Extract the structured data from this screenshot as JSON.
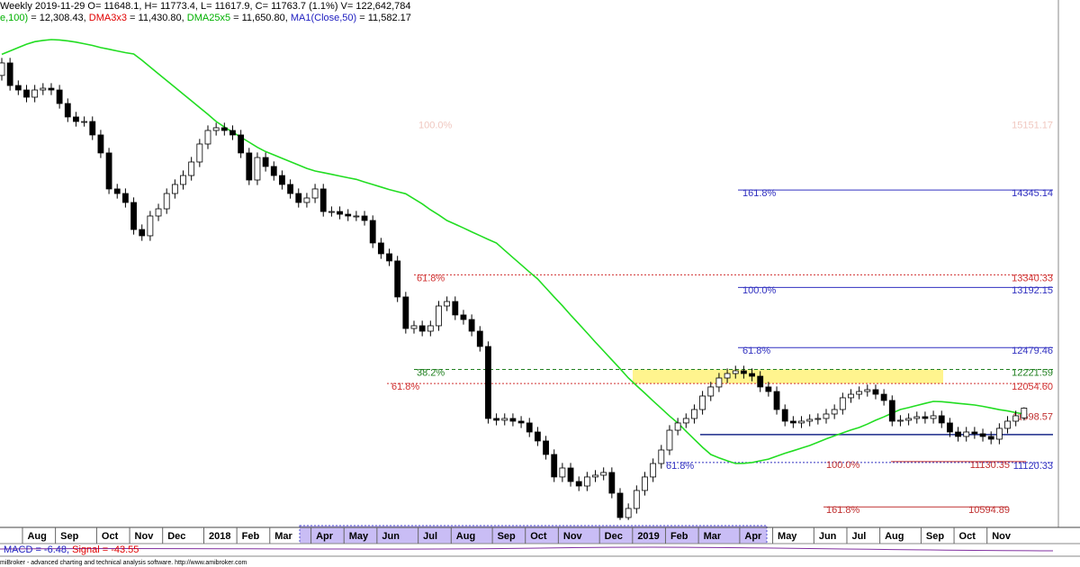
{
  "chart_data": {
    "type": "candlestick",
    "title": "Weekly 2019-11-29 O= 11648.1, H= 11773.4, L= 11617.9, C= 11763.7 (1.1%) V= 122,642,784",
    "indicators": [
      {
        "text": "e,100)",
        "color": "#00b000"
      },
      {
        "text": " = 12,308.43, ",
        "color": "#000000"
      },
      {
        "text": "DMA3x3",
        "color": "#e00000"
      },
      {
        "text": " = 11,430.80, ",
        "color": "#000000"
      },
      {
        "text": "DMA25x5",
        "color": "#00b000"
      },
      {
        "text": " = 11,650.80, ",
        "color": "#000000"
      },
      {
        "text": "MA1(Close,50)",
        "color": "#2020c0"
      },
      {
        "text": " = 11,582.17",
        "color": "#000000"
      }
    ],
    "macd": [
      {
        "text": "MACD = -6.48,",
        "color": "#2020c0"
      },
      {
        "text": " Signal = -43.55",
        "color": "#e00000"
      }
    ],
    "footer": "miBroker - advanced charting and technical analysis software. http://www.amibroker.com",
    "ylim": [
      10416,
      16593
    ],
    "categories": [
      null,
      null,
      null,
      "Aug",
      null,
      null,
      null,
      "Sep",
      null,
      null,
      null,
      null,
      "Oct",
      null,
      null,
      null,
      "Nov",
      null,
      null,
      null,
      "Dec",
      null,
      null,
      null,
      null,
      "2018",
      null,
      null,
      null,
      "Feb",
      null,
      null,
      null,
      "Mar",
      null,
      null,
      null,
      null,
      "Apr",
      null,
      null,
      null,
      "May",
      null,
      null,
      null,
      "Jun",
      null,
      null,
      null,
      null,
      "Jul",
      null,
      null,
      null,
      "Aug",
      null,
      null,
      null,
      null,
      "Sep",
      null,
      null,
      null,
      "Oct",
      null,
      null,
      null,
      "Nov",
      null,
      null,
      null,
      null,
      "Dec",
      null,
      null,
      null,
      "2019",
      null,
      null,
      null,
      "Feb",
      null,
      null,
      null,
      "Mar",
      null,
      null,
      null,
      null,
      "Apr",
      null,
      null,
      null,
      "May",
      null,
      null,
      null,
      null,
      "Jun",
      null,
      null,
      null,
      "Jul",
      null,
      null,
      null,
      "Aug",
      null,
      null,
      null,
      null,
      "Sep",
      null,
      null,
      null,
      "Oct",
      null,
      null,
      null,
      "Nov",
      null,
      null,
      null,
      null
    ],
    "open": [
      15700,
      15848,
      15581,
      15528,
      15443,
      15528,
      15549,
      15528,
      15368,
      15209,
      15155,
      15155,
      14996,
      14783,
      14357,
      14303,
      14197,
      13877,
      13803,
      14037,
      14122,
      14303,
      14410,
      14516,
      14676,
      14889,
      15049,
      15081,
      15049,
      14996,
      14783,
      14463,
      14729,
      14623,
      14516,
      14410,
      14303,
      14197,
      14250,
      14357,
      14090,
      14090,
      14058,
      14037,
      14037,
      13984,
      13718,
      13590,
      13505,
      13079,
      12706,
      12738,
      12674,
      12738,
      12972,
      13025,
      12866,
      12812,
      12674,
      12493,
      11641,
      11620,
      11641,
      11609,
      11588,
      11481,
      11375,
      11215,
      10949,
      11055,
      10895,
      10842,
      10949,
      10970,
      11002,
      10757,
      10469,
      10576,
      10789,
      10949,
      11108,
      11268,
      11502,
      11588,
      11641,
      11747,
      11907,
      12014,
      12120,
      12173,
      12205,
      12173,
      12141,
      12014,
      11960,
      11747,
      11609,
      11588,
      11609,
      11630,
      11641,
      11694,
      11747,
      11886,
      11928,
      11960,
      11982,
      11928,
      11854,
      11609,
      11620,
      11641,
      11662,
      11641,
      11673,
      11588,
      11481,
      11428,
      11481,
      11460,
      11428,
      11396,
      11524,
      11609,
      11648.1
    ],
    "high": [
      15908,
      15908,
      15641,
      15588,
      15588,
      15609,
      15609,
      15588,
      15428,
      15269,
      15215,
      15215,
      15056,
      14843,
      14417,
      14363,
      14257,
      13937,
      14097,
      14182,
      14363,
      14470,
      14576,
      14736,
      14949,
      15109,
      15141,
      15141,
      15109,
      15056,
      14843,
      14789,
      14789,
      14683,
      14576,
      14470,
      14363,
      14310,
      14417,
      14417,
      14150,
      14150,
      14118,
      14097,
      14097,
      14044,
      13778,
      13650,
      13565,
      13139,
      12798,
      12798,
      12798,
      13032,
      13085,
      13085,
      12926,
      12872,
      12734,
      12553,
      11701,
      11701,
      11701,
      11669,
      11648,
      11541,
      11435,
      11275,
      11115,
      11115,
      10955,
      11009,
      11030,
      11062,
      11062,
      10817,
      10636,
      10849,
      11009,
      11168,
      11328,
      11562,
      11648,
      11701,
      11807,
      11967,
      12074,
      12180,
      12233,
      12265,
      12265,
      12233,
      12201,
      12074,
      12020,
      11807,
      11669,
      11669,
      11690,
      11701,
      11754,
      11807,
      11946,
      11988,
      12020,
      12042,
      12042,
      11988,
      11914,
      11680,
      11701,
      11722,
      11722,
      11733,
      11733,
      11648,
      11541,
      11541,
      11541,
      11520,
      11488,
      11584,
      11669,
      11733,
      11773.4
    ],
    "low": [
      15640,
      15521,
      15468,
      15383,
      15383,
      15468,
      15468,
      15308,
      15149,
      15095,
      15095,
      14936,
      14723,
      14297,
      14243,
      14137,
      13817,
      13743,
      13743,
      13977,
      14062,
      14243,
      14350,
      14456,
      14616,
      14829,
      14989,
      14989,
      14936,
      14723,
      14403,
      14403,
      14563,
      14456,
      14350,
      14243,
      14137,
      14137,
      14190,
      14030,
      14030,
      13998,
      13977,
      13977,
      13924,
      13658,
      13530,
      13445,
      13019,
      12646,
      12646,
      12614,
      12614,
      12678,
      12912,
      12806,
      12752,
      12614,
      12433,
      11581,
      11560,
      11560,
      11549,
      11528,
      11421,
      11315,
      11155,
      10889,
      10889,
      10835,
      10782,
      10782,
      10889,
      10910,
      10697,
      10440,
      10440,
      10516,
      10729,
      10889,
      11048,
      11208,
      11442,
      11528,
      11581,
      11687,
      11847,
      11954,
      12060,
      12113,
      12113,
      12081,
      11954,
      11900,
      11687,
      11549,
      11528,
      11528,
      11549,
      11570,
      11581,
      11634,
      11687,
      11826,
      11868,
      11900,
      11868,
      11794,
      11549,
      11549,
      11560,
      11581,
      11581,
      11581,
      11528,
      11421,
      11368,
      11368,
      11400,
      11368,
      11336,
      11336,
      11464,
      11549,
      11617.9
    ],
    "close": [
      15848,
      15581,
      15528,
      15443,
      15528,
      15549,
      15528,
      15368,
      15209,
      15155,
      15155,
      14996,
      14783,
      14357,
      14303,
      14197,
      13877,
      13803,
      14037,
      14122,
      14303,
      14410,
      14516,
      14676,
      14889,
      15049,
      15081,
      15049,
      14996,
      14783,
      14463,
      14729,
      14623,
      14516,
      14410,
      14303,
      14197,
      14250,
      14357,
      14090,
      14090,
      14058,
      14037,
      14037,
      13984,
      13718,
      13590,
      13505,
      13079,
      12706,
      12738,
      12674,
      12738,
      12972,
      13025,
      12866,
      12812,
      12674,
      12493,
      11641,
      11620,
      11641,
      11609,
      11588,
      11481,
      11375,
      11215,
      10949,
      11055,
      10895,
      10842,
      10949,
      10970,
      11002,
      10757,
      10469,
      10576,
      10789,
      10949,
      11108,
      11268,
      11502,
      11588,
      11641,
      11747,
      11907,
      12014,
      12120,
      12173,
      12205,
      12173,
      12141,
      12014,
      11960,
      11747,
      11609,
      11588,
      11609,
      11630,
      11641,
      11694,
      11747,
      11886,
      11928,
      11960,
      11982,
      11928,
      11854,
      11609,
      11620,
      11641,
      11662,
      11641,
      11673,
      11588,
      11481,
      11428,
      11481,
      11460,
      11428,
      11396,
      11524,
      11609,
      11673,
      11763.7
    ],
    "ma": {
      "color": "#22dd22",
      "values": [
        15950,
        15990,
        16030,
        16070,
        16100,
        16115,
        16124,
        16120,
        16110,
        16095,
        16075,
        16055,
        16030,
        16010,
        15990,
        15970,
        15954,
        15880,
        15800,
        15720,
        15640,
        15560,
        15480,
        15400,
        15320,
        15240,
        15155,
        15090,
        15030,
        14970,
        14910,
        14850,
        14800,
        14760,
        14720,
        14680,
        14640,
        14600,
        14570,
        14550,
        14530,
        14510,
        14490,
        14470,
        14440,
        14410,
        14380,
        14350,
        14325,
        14300,
        14240,
        14180,
        14110,
        14050,
        13984,
        13940,
        13895,
        13850,
        13805,
        13760,
        13718,
        13630,
        13545,
        13460,
        13375,
        13292,
        13185,
        13080,
        12975,
        12865,
        12760,
        12653,
        12545,
        12440,
        12335,
        12230,
        12120,
        12030,
        11940,
        11850,
        11760,
        11670,
        11588,
        11490,
        11395,
        11300,
        11215,
        11175,
        11140,
        11108,
        11110,
        11120,
        11140,
        11160,
        11195,
        11230,
        11260,
        11290,
        11321,
        11360,
        11400,
        11435,
        11470,
        11505,
        11534,
        11575,
        11620,
        11660,
        11705,
        11747,
        11770,
        11795,
        11820,
        11843,
        11840,
        11830,
        11820,
        11810,
        11800,
        11785,
        11765,
        11745,
        11730,
        11710,
        11694
      ]
    },
    "support_line": {
      "value": 11450,
      "color": "#1a2a8a"
    },
    "levels": [
      {
        "ratio": "100.0%",
        "price": 15151.17,
        "color": "#f0c8c0",
        "line": "none"
      },
      {
        "ratio": "161.8%",
        "price": 14345.14,
        "color": "#3030c0",
        "line": "solid"
      },
      {
        "ratio": "61.8%",
        "price": 13340.33,
        "color": "#d03030",
        "line": "dotted"
      },
      {
        "ratio": "100.0%",
        "price": 13192.15,
        "color": "#3030c0",
        "line": "solid"
      },
      {
        "ratio": "61.8%",
        "price": 12479.46,
        "color": "#3030c0",
        "line": "solid"
      },
      {
        "ratio": "38.2%",
        "price": 12221.59,
        "color": "#208020",
        "line": "dashed"
      },
      {
        "ratio": "61.8%",
        "price": {
          "value": 12054.6,
          "label": "12054.60"
        },
        "color": "#d03030",
        "line": "dotted"
      },
      {
        "ratio": "61.8%",
        "price": 11120.33,
        "color": "#3030c0",
        "line": "dotted"
      },
      {
        "ratio": "100.0%",
        "price": 11130.35,
        "color": "#c03030",
        "line": "solid"
      },
      {
        "ratio": "161.8%",
        "price": 10594.89,
        "color": "#c03030",
        "line": "solid"
      },
      {
        "price": 11698.57,
        "color": "#c03030",
        "line": "none"
      }
    ]
  }
}
